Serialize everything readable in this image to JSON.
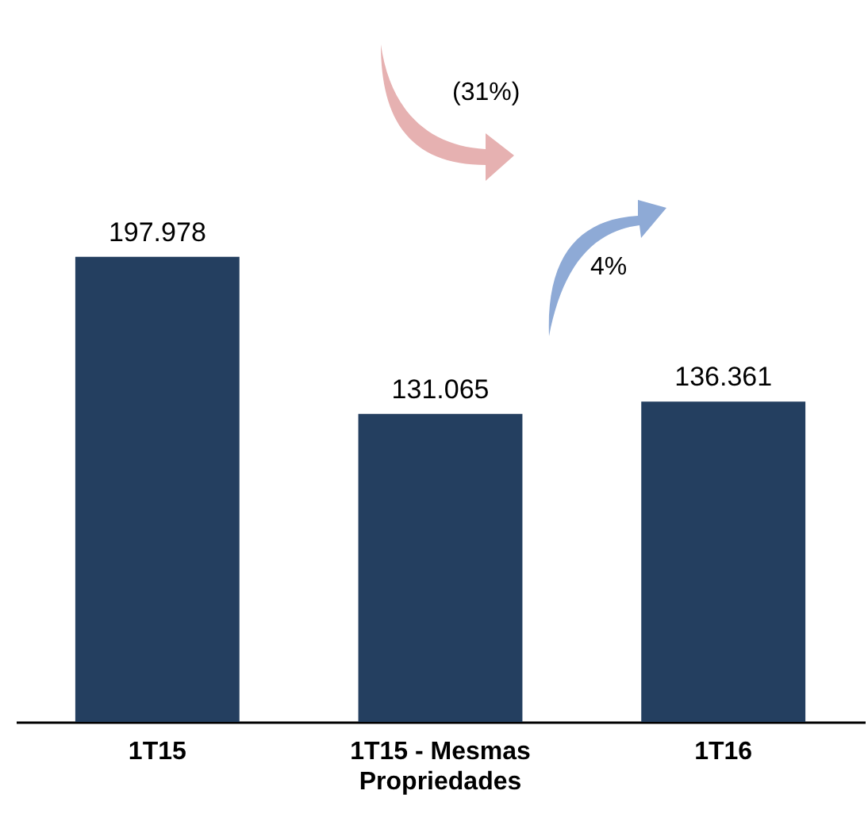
{
  "chart_data": {
    "type": "bar",
    "categories": [
      "1T15",
      "1T15 - Mesmas Propriedades",
      "1T16"
    ],
    "values": [
      197978,
      131065,
      136361
    ],
    "value_labels": [
      "197.978",
      "131.065",
      "136.361"
    ],
    "color": "#243f60",
    "annotations": [
      "(31%)",
      "4%"
    ]
  }
}
